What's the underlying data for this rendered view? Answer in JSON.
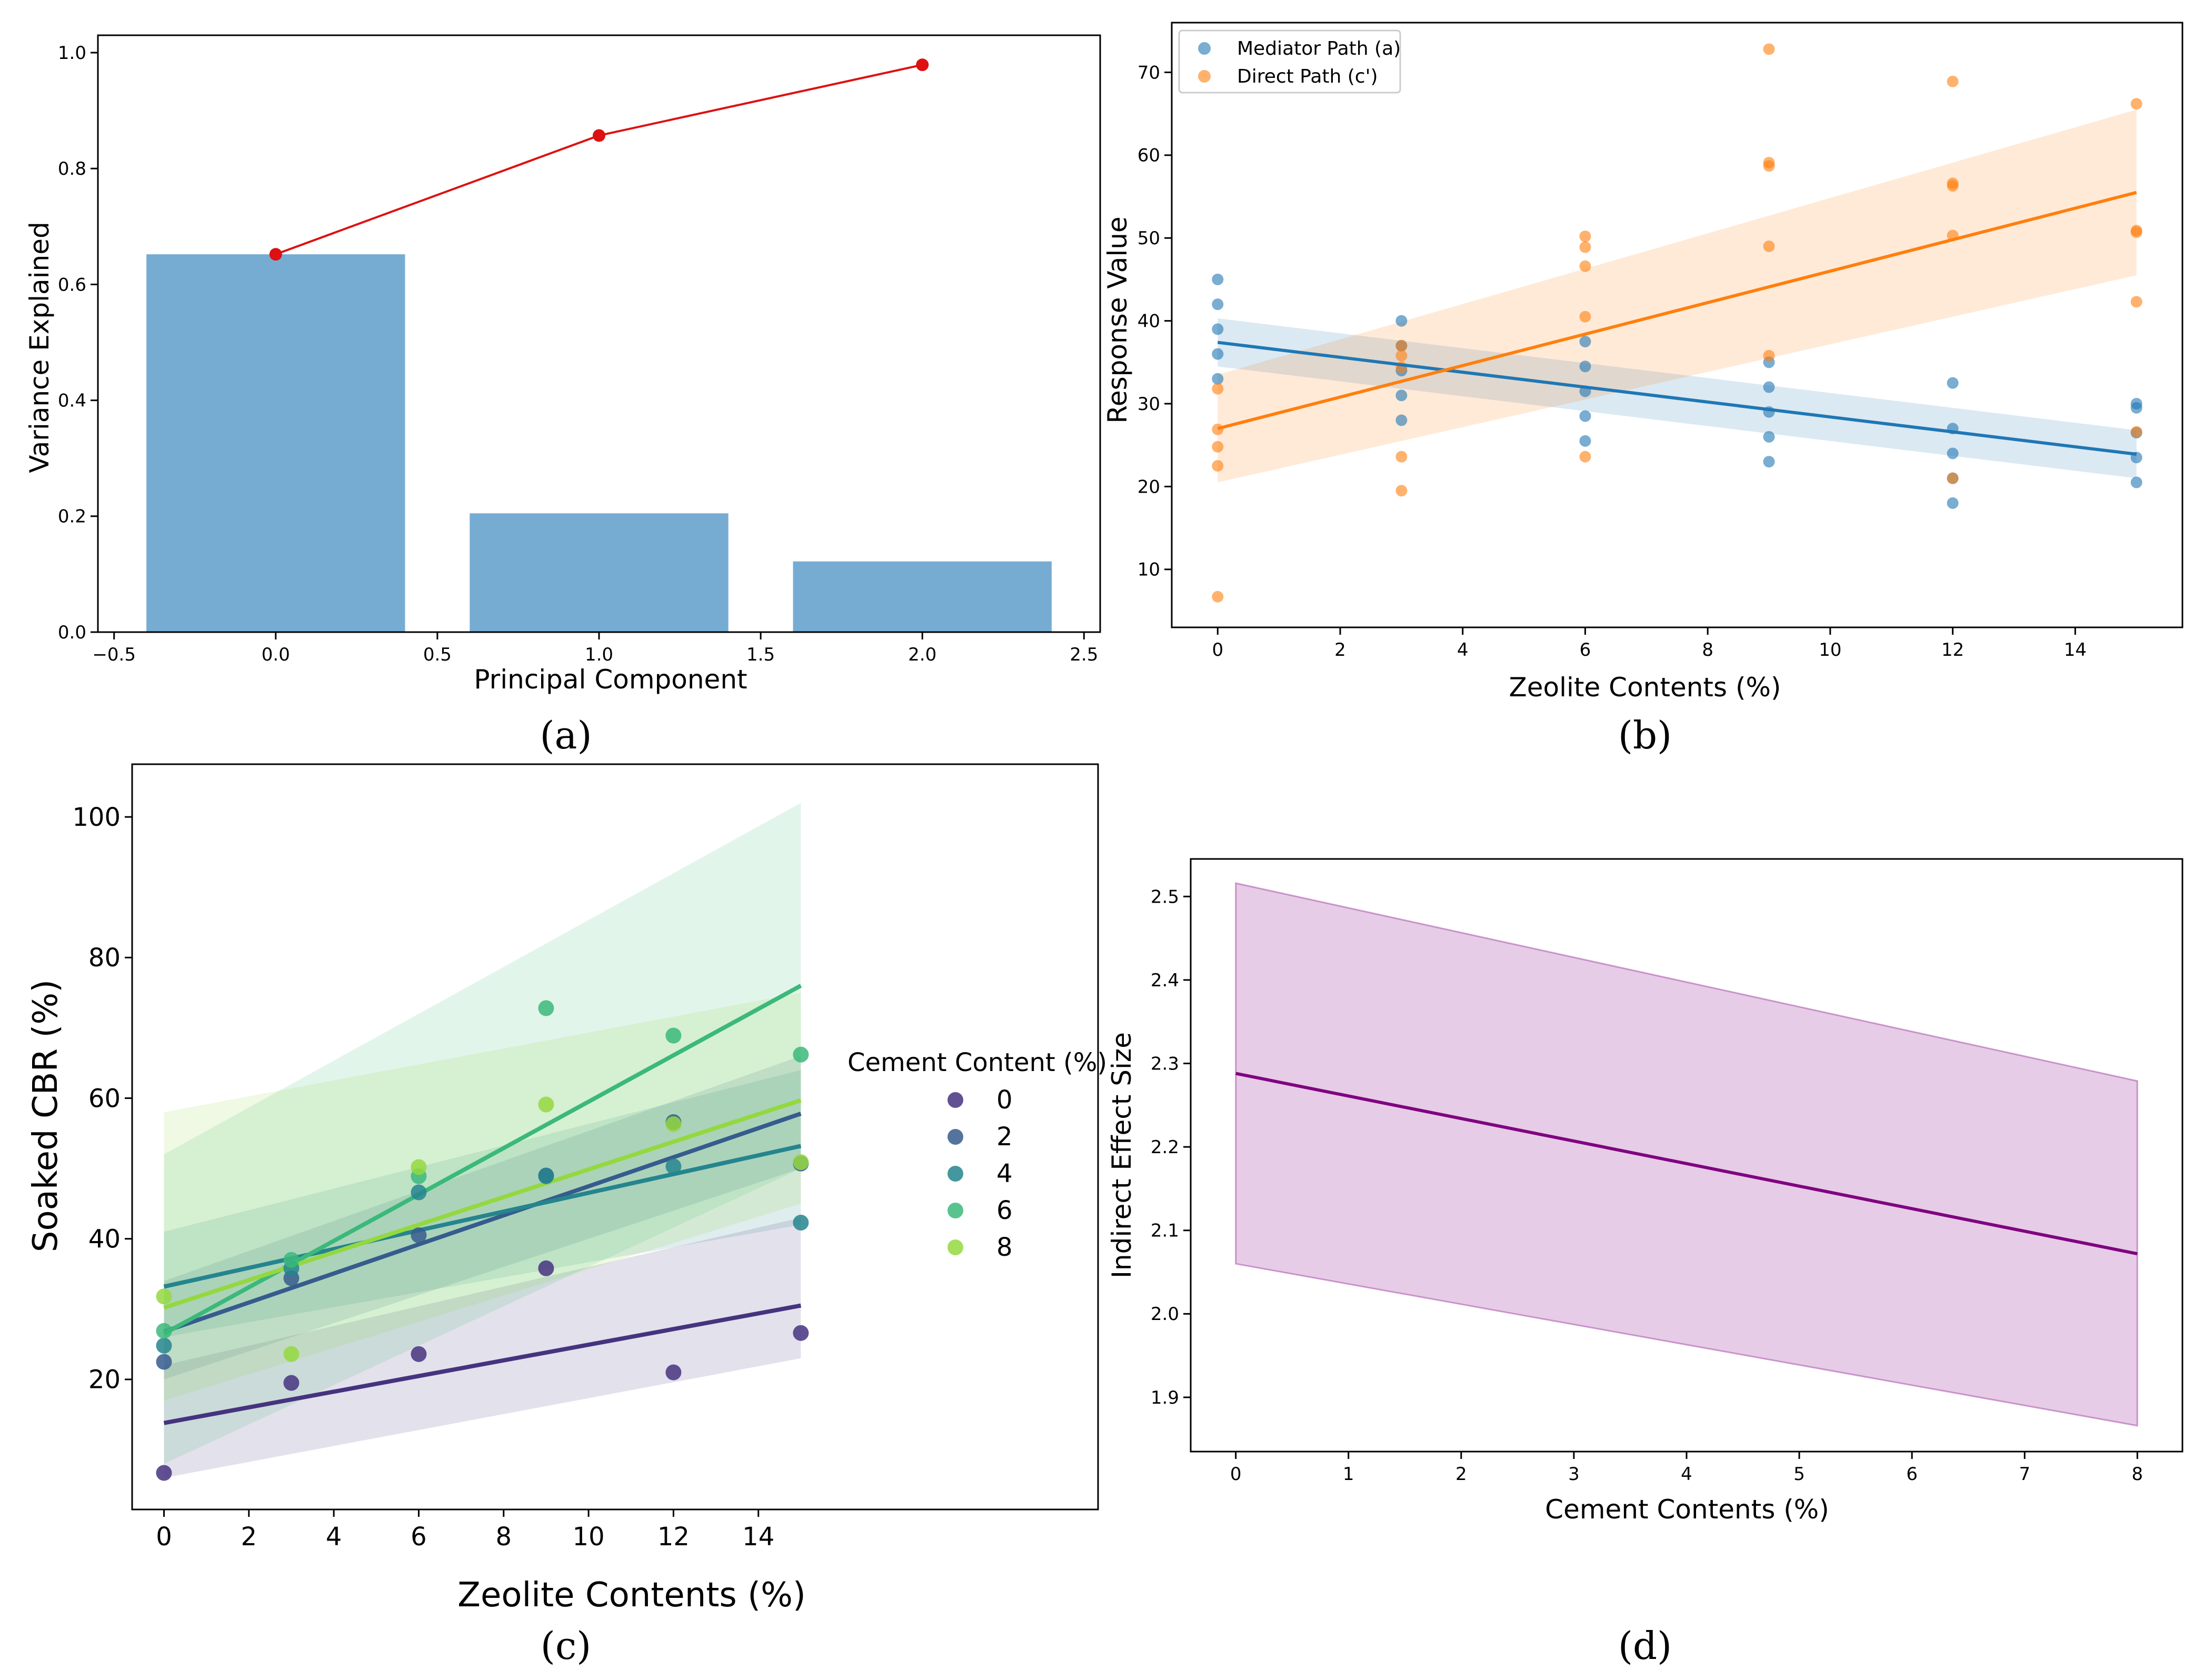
{
  "chart_data": [
    {
      "panel": "(a)",
      "type": "bar",
      "xlabel": "Principal Component",
      "ylabel": "Variance Explained",
      "xlim": [
        -0.55,
        2.55
      ],
      "ylim": [
        0,
        1.03
      ],
      "xticks": [
        "−0.5",
        "0.0",
        "0.5",
        "1.0",
        "1.5",
        "2.0",
        "2.5"
      ],
      "xtick_values": [
        -0.5,
        0.0,
        0.5,
        1.0,
        1.5,
        2.0,
        2.5
      ],
      "yticks": [
        "0.0",
        "0.2",
        "0.4",
        "0.6",
        "0.8",
        "1.0"
      ],
      "ytick_values": [
        0,
        0.2,
        0.4,
        0.6,
        0.8,
        1.0
      ],
      "bars": {
        "x": [
          0,
          1,
          2
        ],
        "values": [
          0.652,
          0.205,
          0.122
        ],
        "width": 0.8,
        "color": "#77acd2"
      },
      "cumulative": {
        "x": [
          0,
          1,
          2
        ],
        "values": [
          0.652,
          0.857,
          0.979
        ],
        "color": "#dd1111"
      }
    },
    {
      "panel": "(b)",
      "type": "scatter",
      "xlabel": "Zeolite Contents (%)",
      "ylabel": "Response Value",
      "xlim": [
        -0.75,
        15.75
      ],
      "ylim": [
        3,
        76
      ],
      "xticks": [
        "0",
        "2",
        "4",
        "6",
        "8",
        "10",
        "12",
        "14"
      ],
      "xtick_values": [
        0,
        2,
        4,
        6,
        8,
        10,
        12,
        14
      ],
      "yticks": [
        "10",
        "20",
        "30",
        "40",
        "50",
        "60",
        "70"
      ],
      "ytick_values": [
        10,
        20,
        30,
        40,
        50,
        60,
        70
      ],
      "legend_position": "top-left",
      "series": [
        {
          "name": "Mediator Path (a)",
          "color": "#1f77b4",
          "x": [
            0,
            0,
            0,
            0,
            0,
            3,
            3,
            3,
            3,
            3,
            6,
            6,
            6,
            6,
            6,
            9,
            9,
            9,
            9,
            9,
            12,
            12,
            12,
            12,
            12,
            15,
            15,
            15,
            15,
            15
          ],
          "y": [
            45,
            42,
            39,
            36,
            33,
            40,
            37,
            34,
            31,
            28,
            37.5,
            34.5,
            31.5,
            28.5,
            25.5,
            35,
            32,
            29,
            26,
            23,
            32.5,
            27,
            24,
            21,
            18,
            30,
            29.5,
            26.5,
            23.5,
            20.5
          ],
          "fit": [
            37.4,
            23.9
          ],
          "band_low": [
            34.5,
            21.0
          ],
          "band_high": [
            40.3,
            26.8
          ]
        },
        {
          "name": "Direct Path (c')",
          "color": "#ff7f0e",
          "x": [
            0,
            0,
            0,
            0,
            0,
            3,
            3,
            3,
            3,
            3,
            6,
            6,
            6,
            6,
            6,
            9,
            9,
            9,
            9,
            9,
            12,
            12,
            12,
            12,
            12,
            15,
            15,
            15,
            15,
            15
          ],
          "y": [
            6.7,
            22.5,
            24.8,
            26.9,
            31.8,
            19.5,
            23.6,
            34.4,
            35.8,
            37,
            23.6,
            40.5,
            46.6,
            48.9,
            50.2,
            35.8,
            49,
            58.7,
            59.1,
            72.8,
            21,
            50.3,
            56.6,
            56.3,
            68.9,
            26.6,
            42.3,
            50.7,
            50.9,
            66.2
          ],
          "fit": [
            27.0,
            55.5
          ],
          "band_low": [
            20.5,
            45.5
          ],
          "band_high": [
            33.5,
            65.5
          ]
        }
      ]
    },
    {
      "panel": "(c)",
      "type": "scatter",
      "xlabel": "Zeolite Contents (%)",
      "ylabel": "Soaked CBR (%)",
      "xlim": [
        -0.75,
        22
      ],
      "ylim": [
        1.5,
        107.5
      ],
      "xticks": [
        "0",
        "2",
        "4",
        "6",
        "8",
        "10",
        "12",
        "14"
      ],
      "xtick_values": [
        0,
        2,
        4,
        6,
        8,
        10,
        12,
        14
      ],
      "yticks": [
        "20",
        "40",
        "60",
        "80",
        "100"
      ],
      "ytick_values": [
        20,
        40,
        60,
        80,
        100
      ],
      "legend_title": "Cement Content (%)",
      "legend_position": "center-right",
      "series": [
        {
          "name": "0",
          "color": "#46337f",
          "x": [
            0,
            3,
            6,
            9,
            12,
            15
          ],
          "y": [
            6.7,
            19.5,
            23.6,
            35.8,
            21.0,
            26.6
          ],
          "fit": [
            13.8,
            30.5
          ],
          "band_low": [
            6,
            23
          ],
          "band_high": [
            22,
            43
          ]
        },
        {
          "name": "2",
          "color": "#365c8d",
          "x": [
            0,
            3,
            6,
            9,
            12,
            15
          ],
          "y": [
            22.5,
            34.4,
            40.5,
            49.0,
            56.6,
            50.7
          ],
          "fit": [
            26.8,
            57.8
          ],
          "band_low": [
            20,
            50
          ],
          "band_high": [
            34,
            66
          ]
        },
        {
          "name": "4",
          "color": "#25858e",
          "x": [
            0,
            3,
            6,
            9,
            12,
            15
          ],
          "y": [
            24.8,
            35.8,
            46.6,
            48.9,
            50.3,
            42.3
          ],
          "fit": [
            33.2,
            53.2
          ],
          "band_low": [
            26,
            42
          ],
          "band_high": [
            41,
            64
          ]
        },
        {
          "name": "6",
          "color": "#3bb97a",
          "x": [
            0,
            3,
            6,
            9,
            12,
            15
          ],
          "y": [
            26.9,
            37.0,
            48.9,
            72.8,
            68.9,
            66.2
          ],
          "fit": [
            26.5,
            76.0
          ],
          "band_low": [
            8,
            50
          ],
          "band_high": [
            52,
            102
          ]
        },
        {
          "name": "8",
          "color": "#94d840",
          "x": [
            0,
            3,
            6,
            9,
            12,
            15
          ],
          "y": [
            31.8,
            23.6,
            50.2,
            59.1,
            56.3,
            50.9
          ],
          "fit": [
            30.2,
            59.7
          ],
          "band_low": [
            17,
            45
          ],
          "band_high": [
            58,
            75
          ]
        }
      ]
    },
    {
      "panel": "(d)",
      "type": "line",
      "xlabel": "Cement Contents (%)",
      "ylabel": "Indirect Effect Size",
      "xlim": [
        -0.4,
        8.4
      ],
      "ylim": [
        1.835,
        2.545
      ],
      "xticks": [
        "0",
        "1",
        "2",
        "3",
        "4",
        "5",
        "6",
        "7",
        "8"
      ],
      "xtick_values": [
        0,
        1,
        2,
        3,
        4,
        5,
        6,
        7,
        8
      ],
      "yticks": [
        "1.9",
        "2.0",
        "2.1",
        "2.2",
        "2.3",
        "2.4",
        "2.5"
      ],
      "ytick_values": [
        1.9,
        2.0,
        2.1,
        2.2,
        2.3,
        2.4,
        2.5
      ],
      "x": [
        0,
        8
      ],
      "y": [
        2.288,
        2.072
      ],
      "band_low": [
        2.06,
        1.866
      ],
      "band_high": [
        2.516,
        2.279
      ],
      "color": "#800080"
    }
  ]
}
